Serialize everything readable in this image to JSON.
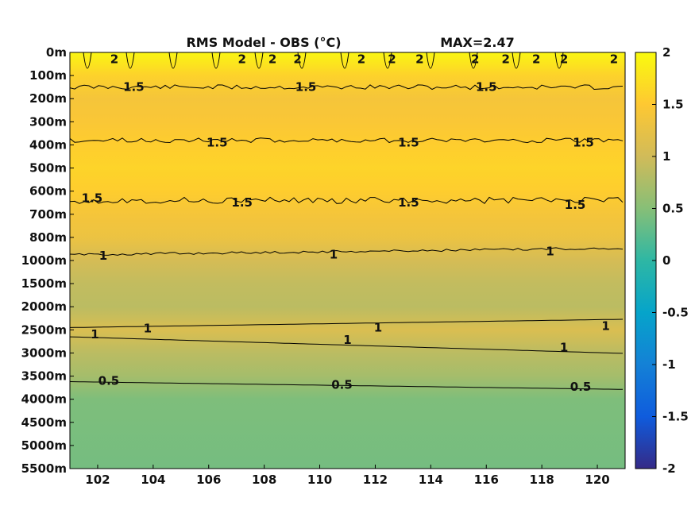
{
  "chart_data": {
    "type": "heatmap",
    "title": "RMS Model - OBS (°C)",
    "title_annotation": "MAX=2.47",
    "xlim": [
      101,
      121
    ],
    "x_ticks": [
      "102",
      "104",
      "106",
      "108",
      "110",
      "112",
      "114",
      "116",
      "118",
      "120"
    ],
    "y_ticks": [
      "0m",
      "100m",
      "200m",
      "300m",
      "400m",
      "500m",
      "600m",
      "700m",
      "800m",
      "1000m",
      "1500m",
      "2000m",
      "2500m",
      "3000m",
      "3500m",
      "4000m",
      "4500m",
      "5000m",
      "5500m"
    ],
    "colorbar": {
      "range": [
        -2,
        2
      ],
      "ticks": [
        "2",
        "1.5",
        "1",
        "0.5",
        "0",
        "-0.5",
        "-1",
        "-1.5",
        "-2"
      ],
      "colors": [
        "#352a87",
        "#0f5cdd",
        "#1481d6",
        "#06a4ca",
        "#2eb7a4",
        "#87bf77",
        "#d1bb59",
        "#fec832",
        "#f9fb0e"
      ]
    },
    "depth_profile": [
      {
        "depth": "0m",
        "value": 1.95
      },
      {
        "depth": "100m",
        "value": 1.6
      },
      {
        "depth": "200m",
        "value": 1.4
      },
      {
        "depth": "300m",
        "value": 1.45
      },
      {
        "depth": "400m",
        "value": 1.55
      },
      {
        "depth": "500m",
        "value": 1.62
      },
      {
        "depth": "600m",
        "value": 1.55
      },
      {
        "depth": "700m",
        "value": 1.4
      },
      {
        "depth": "800m",
        "value": 1.3
      },
      {
        "depth": "1000m",
        "value": 1.05
      },
      {
        "depth": "1500m",
        "value": 0.9
      },
      {
        "depth": "2000m",
        "value": 0.85
      },
      {
        "depth": "2500m",
        "value": 1.1
      },
      {
        "depth": "3000m",
        "value": 0.85
      },
      {
        "depth": "3500m",
        "value": 0.7
      },
      {
        "depth": "4000m",
        "value": 0.45
      },
      {
        "depth": "5500m",
        "value": 0.4
      }
    ],
    "contour_labels": [
      {
        "text": "1.5",
        "x": 103.3,
        "depth": "150m"
      },
      {
        "text": "1.5",
        "x": 109.5,
        "depth": "150m"
      },
      {
        "text": "1.5",
        "x": 116.0,
        "depth": "150m"
      },
      {
        "text": "1.5",
        "x": 106.3,
        "depth": "390m"
      },
      {
        "text": "1.5",
        "x": 113.2,
        "depth": "390m"
      },
      {
        "text": "1.5",
        "x": 119.5,
        "depth": "390m"
      },
      {
        "text": "1.5",
        "x": 101.8,
        "depth": "630m"
      },
      {
        "text": "1.5",
        "x": 107.2,
        "depth": "650m"
      },
      {
        "text": "1.5",
        "x": 113.2,
        "depth": "650m"
      },
      {
        "text": "1.5",
        "x": 119.2,
        "depth": "660m"
      },
      {
        "text": "1",
        "x": 102.2,
        "depth": "960m"
      },
      {
        "text": "1",
        "x": 110.5,
        "depth": "950m"
      },
      {
        "text": "1",
        "x": 118.3,
        "depth": "920m"
      },
      {
        "text": "1",
        "x": 103.8,
        "depth": "2470m"
      },
      {
        "text": "1",
        "x": 112.1,
        "depth": "2450m"
      },
      {
        "text": "1",
        "x": 120.3,
        "depth": "2420m"
      },
      {
        "text": "1",
        "x": 101.9,
        "depth": "2600m"
      },
      {
        "text": "1",
        "x": 111.0,
        "depth": "2720m"
      },
      {
        "text": "1",
        "x": 118.8,
        "depth": "2880m"
      },
      {
        "text": "0.5",
        "x": 102.4,
        "depth": "3600m"
      },
      {
        "text": "0.5",
        "x": 110.8,
        "depth": "3690m"
      },
      {
        "text": "0.5",
        "x": 119.4,
        "depth": "3730m"
      },
      {
        "text": "2",
        "x": 102.6,
        "depth": "30m"
      },
      {
        "text": "2",
        "x": 107.2,
        "depth": "30m"
      },
      {
        "text": "2",
        "x": 108.3,
        "depth": "30m"
      },
      {
        "text": "2",
        "x": 109.2,
        "depth": "30m"
      },
      {
        "text": "2",
        "x": 111.5,
        "depth": "30m"
      },
      {
        "text": "2",
        "x": 112.6,
        "depth": "30m"
      },
      {
        "text": "2",
        "x": 113.6,
        "depth": "30m"
      },
      {
        "text": "2",
        "x": 115.6,
        "depth": "30m"
      },
      {
        "text": "2",
        "x": 116.7,
        "depth": "30m"
      },
      {
        "text": "2",
        "x": 117.8,
        "depth": "30m"
      },
      {
        "text": "2",
        "x": 118.8,
        "depth": "30m"
      },
      {
        "text": "2",
        "x": 120.6,
        "depth": "30m"
      }
    ]
  }
}
